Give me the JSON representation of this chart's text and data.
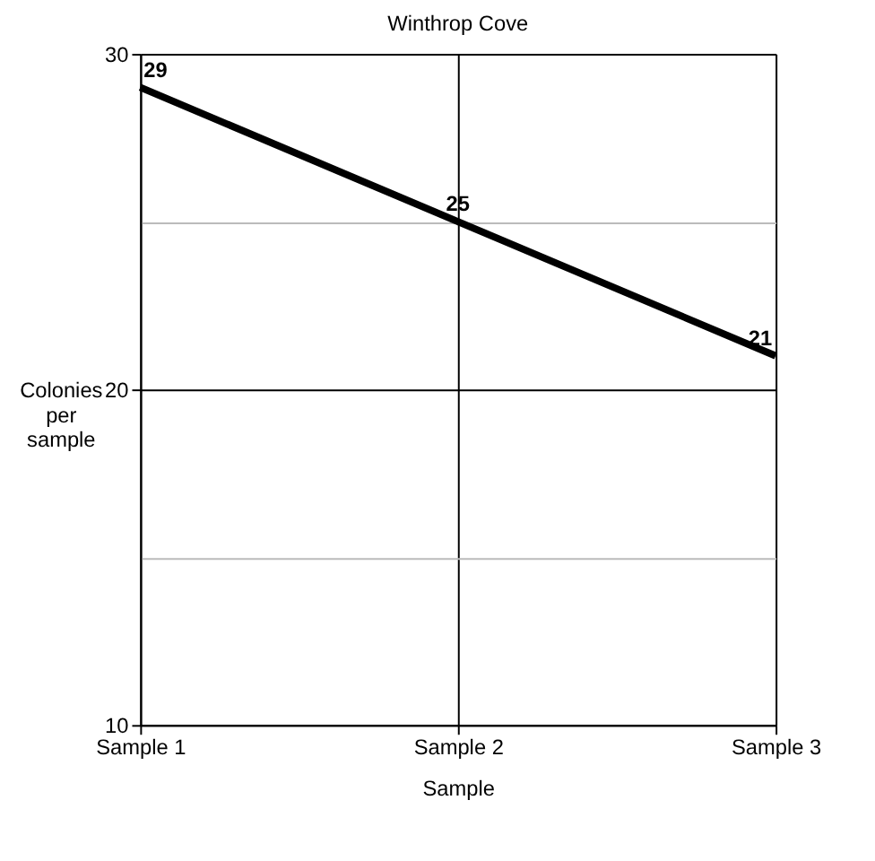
{
  "chart_data": {
    "type": "line",
    "title": "Winthrop Cove",
    "xlabel": "Sample",
    "ylabel": "Colonies\nper\nsample",
    "categories": [
      "Sample 1",
      "Sample 2",
      "Sample 3"
    ],
    "series": [
      {
        "color": "#000000",
        "values": [
          29,
          25,
          21
        ]
      }
    ],
    "ylim": [
      10,
      30
    ],
    "yticks": [
      10,
      {
        "value": 15,
        "label": null
      },
      20,
      {
        "value": 25,
        "label": null
      },
      30
    ],
    "grid": true,
    "data_labels": true,
    "legend": false,
    "marker": "none",
    "line_style": "solid"
  }
}
